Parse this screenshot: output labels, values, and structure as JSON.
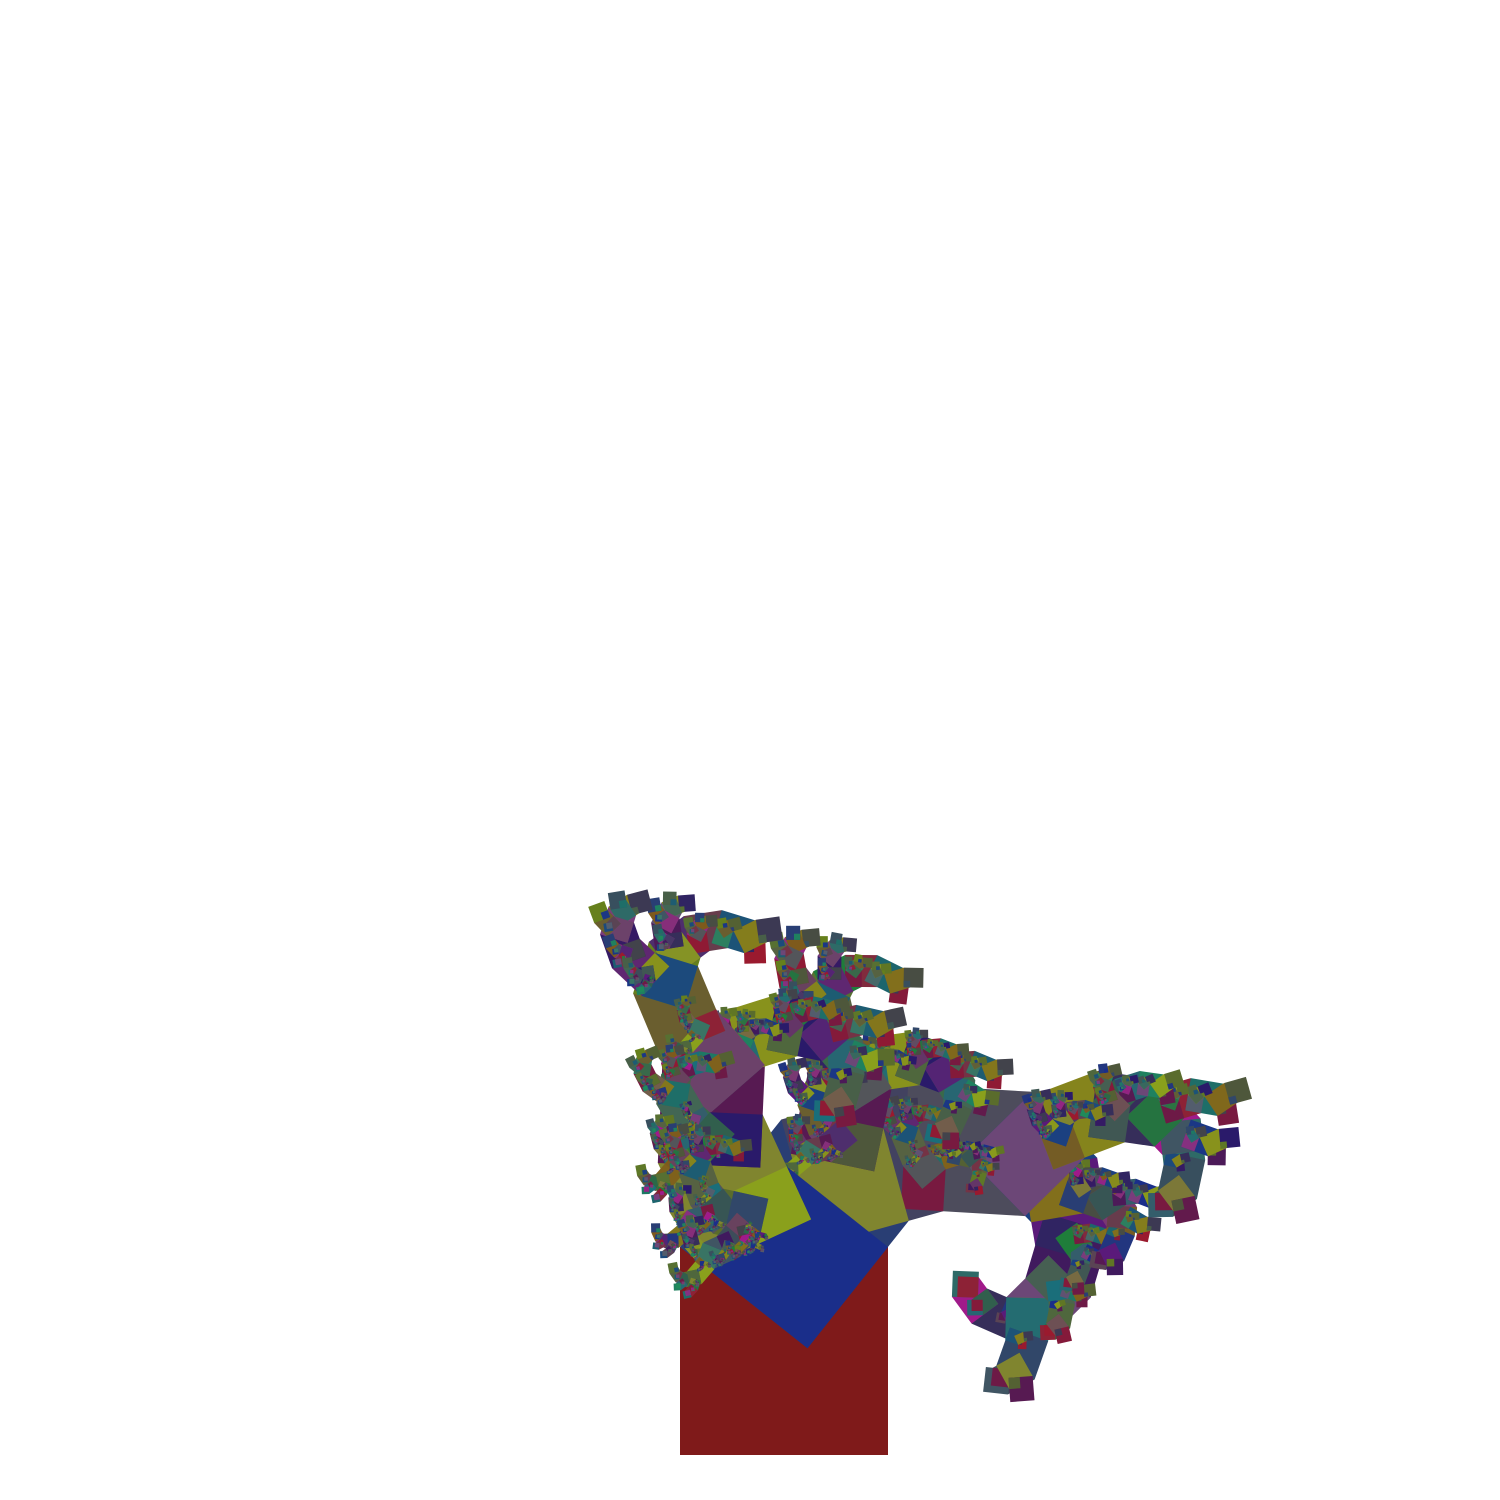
{
  "figure": {
    "type": "pythagoras-tree-fractal",
    "background": "#ffffff",
    "depth": 11,
    "trunk_color": "#7f1a1a",
    "branch_palette": [
      "#7e5a1c",
      "#66801c",
      "#1f7d3a",
      "#1a6e7a",
      "#1a2e8a",
      "#5a1a7a",
      "#9a1a2e",
      "#1f8a5a",
      "#8aa01c",
      "#2a1a6a",
      "#a01a8a"
    ]
  }
}
